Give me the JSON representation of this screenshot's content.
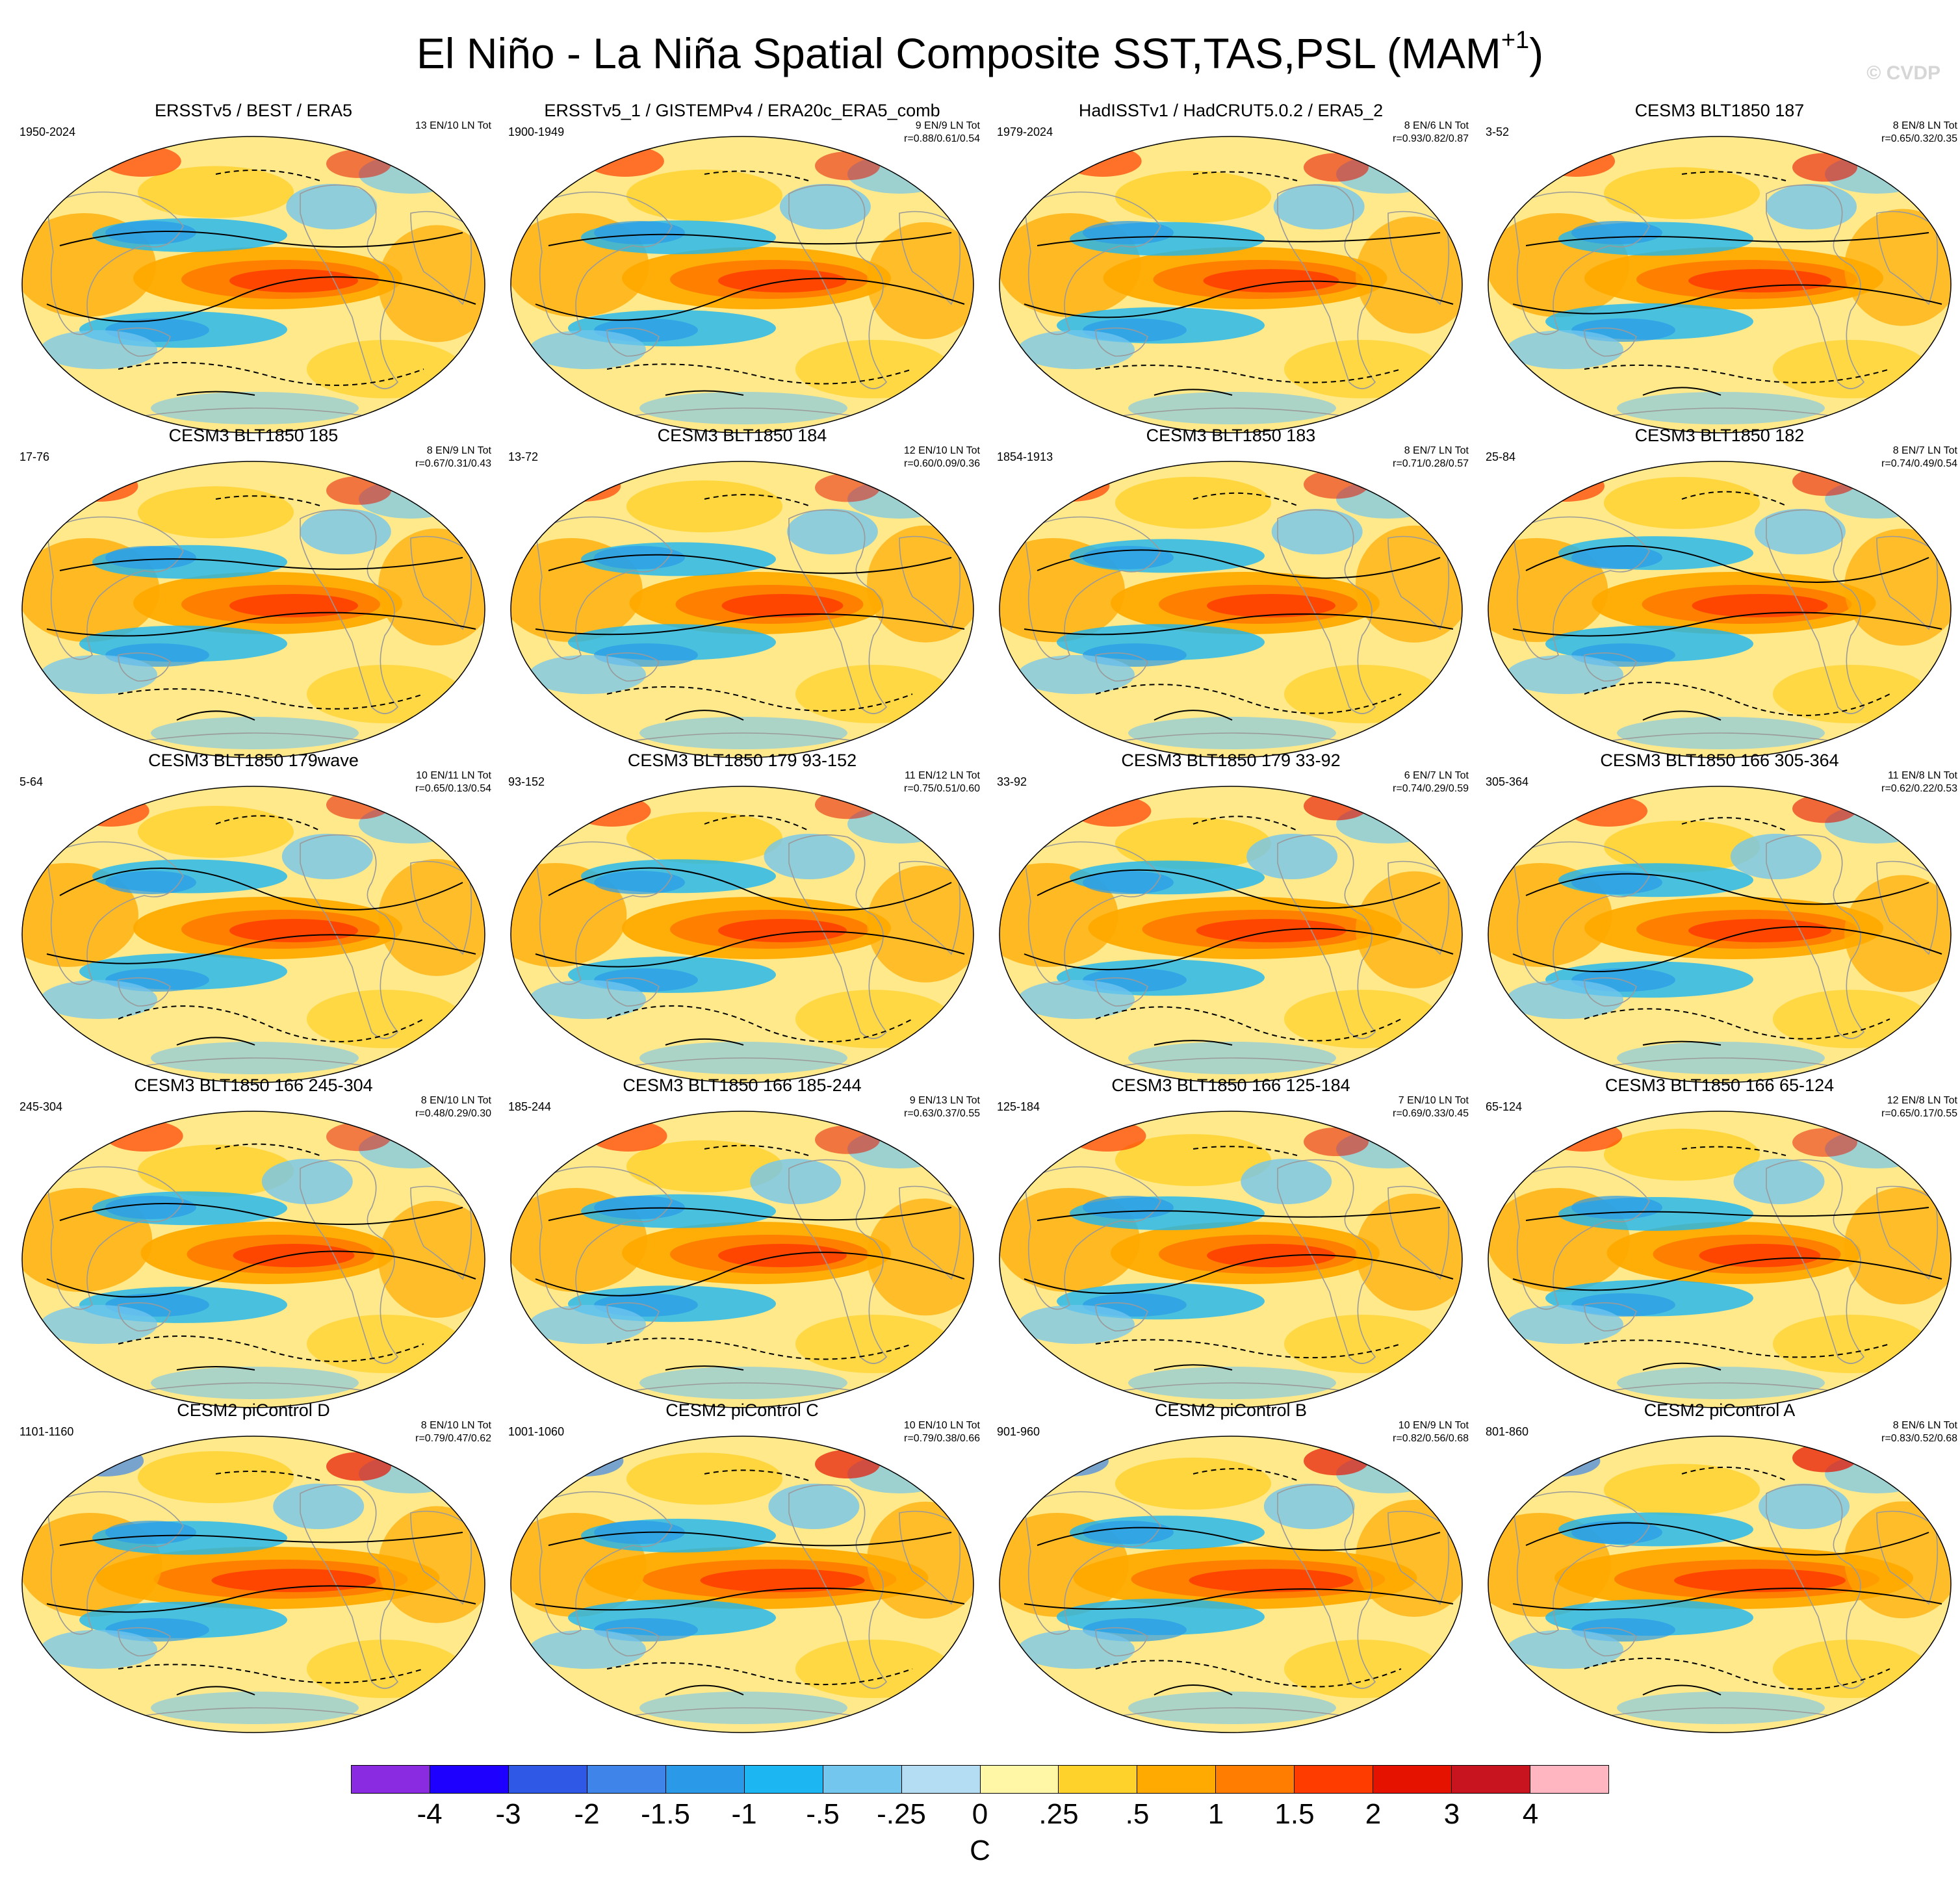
{
  "title": {
    "text": "El Niño - La Niña Spatial Composite SST,TAS,PSL (MAM",
    "superscript": "+1",
    "close": ")"
  },
  "watermark": "© CVDP",
  "colorbar": {
    "colors": [
      "#8a2be2",
      "#1e00ff",
      "#2f58e6",
      "#3f84e8",
      "#2a9ae8",
      "#1cb6f2",
      "#73c6ee",
      "#b4dcf2",
      "#fff7a6",
      "#ffd12b",
      "#ffaa00",
      "#ff7d00",
      "#ff3c00",
      "#e61200",
      "#c8141e",
      "#ffb6c1"
    ],
    "labels": [
      "-4",
      "-3",
      "-2",
      "-1.5",
      "-1",
      "-.5",
      "-.25",
      "0",
      ".25",
      ".5",
      "1",
      "1.5",
      "2",
      "3",
      "4"
    ],
    "unit": "C"
  },
  "panels": [
    {
      "title": "ERSSTv5 / BEST / ERA5",
      "years": "1950-2024",
      "stats1": "13 EN/10 LN Tot",
      "stats2": "",
      "intensity": 0.9,
      "wave": 0.4
    },
    {
      "title": "ERSSTv5_1 / GISTEMPv4 / ERA20c_ERA5_comb",
      "years": "1900-1949",
      "stats1": "9 EN/9 LN Tot",
      "stats2": "r=0.88/0.61/0.54",
      "intensity": 0.9,
      "wave": 0.8
    },
    {
      "title": "HadISSTv1 / HadCRUT5.0.2 / ERA5_2",
      "years": "1979-2024",
      "stats1": "8 EN/6 LN Tot",
      "stats2": "r=0.93/0.82/0.87",
      "intensity": 0.95,
      "wave": 1.3
    },
    {
      "title": "CESM3 BLT1850 187",
      "years": "3-52",
      "stats1": "8 EN/8 LN Tot",
      "stats2": "r=0.65/0.32/0.35",
      "intensity": 1.0,
      "wave": 1.9
    },
    {
      "title": "CESM3 BLT1850 185",
      "years": "17-76",
      "stats1": "8 EN/9 LN Tot",
      "stats2": "r=0.67/0.31/0.43",
      "intensity": 0.9,
      "wave": 2.4
    },
    {
      "title": "CESM3 BLT1850 184",
      "years": "13-72",
      "stats1": "12 EN/10 LN Tot",
      "stats2": "r=0.60/0.09/0.36",
      "intensity": 0.85,
      "wave": 2.9
    },
    {
      "title": "CESM3 BLT1850 183",
      "years": "1854-1913",
      "stats1": "8 EN/7 LN Tot",
      "stats2": "r=0.71/0.28/0.57",
      "intensity": 0.9,
      "wave": 3.4
    },
    {
      "title": "CESM3 BLT1850 182",
      "years": "25-84",
      "stats1": "8 EN/7 LN Tot",
      "stats2": "r=0.74/0.49/0.54",
      "intensity": 0.95,
      "wave": 3.9
    },
    {
      "title": "CESM3 BLT1850 179wave",
      "years": "5-64",
      "stats1": "10 EN/11 LN Tot",
      "stats2": "r=0.65/0.13/0.54",
      "intensity": 0.9,
      "wave": 4.4
    },
    {
      "title": "CESM3 BLT1850 179 93-152",
      "years": "93-152",
      "stats1": "11 EN/12 LN Tot",
      "stats2": "r=0.75/0.51/0.60",
      "intensity": 0.9,
      "wave": 4.9
    },
    {
      "title": "CESM3 BLT1850 179 33-92",
      "years": "33-92",
      "stats1": "6 EN/7 LN Tot",
      "stats2": "r=0.74/0.29/0.59",
      "intensity": 1.05,
      "wave": 5.4
    },
    {
      "title": "CESM3 BLT1850 166 305-364",
      "years": "305-364",
      "stats1": "11 EN/8 LN Tot",
      "stats2": "r=0.62/0.22/0.53",
      "intensity": 1.0,
      "wave": 5.9
    },
    {
      "title": "CESM3 BLT1850 166 245-304",
      "years": "245-304",
      "stats1": "8 EN/10 LN Tot",
      "stats2": "r=0.48/0.29/0.30",
      "intensity": 0.85,
      "wave": 6.4
    },
    {
      "title": "CESM3 BLT1850 166 185-244",
      "years": "185-244",
      "stats1": "9 EN/13 LN Tot",
      "stats2": "r=0.63/0.37/0.55",
      "intensity": 0.9,
      "wave": 6.9
    },
    {
      "title": "CESM3 BLT1850 166 125-184",
      "years": "125-184",
      "stats1": "7 EN/10 LN Tot",
      "stats2": "r=0.69/0.33/0.45",
      "intensity": 0.9,
      "wave": 7.4
    },
    {
      "title": "CESM3 BLT1850 166 65-124",
      "years": "65-124",
      "stats1": "12 EN/8 LN Tot",
      "stats2": "r=0.65/0.17/0.55",
      "intensity": 0.85,
      "wave": 7.9
    },
    {
      "title": "CESM2 piControl D",
      "years": "1101-1160",
      "stats1": "8 EN/10 LN Tot",
      "stats2": "r=0.79/0.47/0.62",
      "intensity": 1.15,
      "wave": 8.4
    },
    {
      "title": "CESM2 piControl C",
      "years": "1001-1060",
      "stats1": "10 EN/10 LN Tot",
      "stats2": "r=0.79/0.38/0.66",
      "intensity": 1.15,
      "wave": 8.9
    },
    {
      "title": "CESM2 piControl B",
      "years": "901-960",
      "stats1": "10 EN/9 LN Tot",
      "stats2": "r=0.82/0.56/0.68",
      "intensity": 1.15,
      "wave": 9.4
    },
    {
      "title": "CESM2 piControl A",
      "years": "801-860",
      "stats1": "8 EN/6 LN Tot",
      "stats2": "r=0.83/0.52/0.68",
      "intensity": 1.2,
      "wave": 9.9
    }
  ]
}
